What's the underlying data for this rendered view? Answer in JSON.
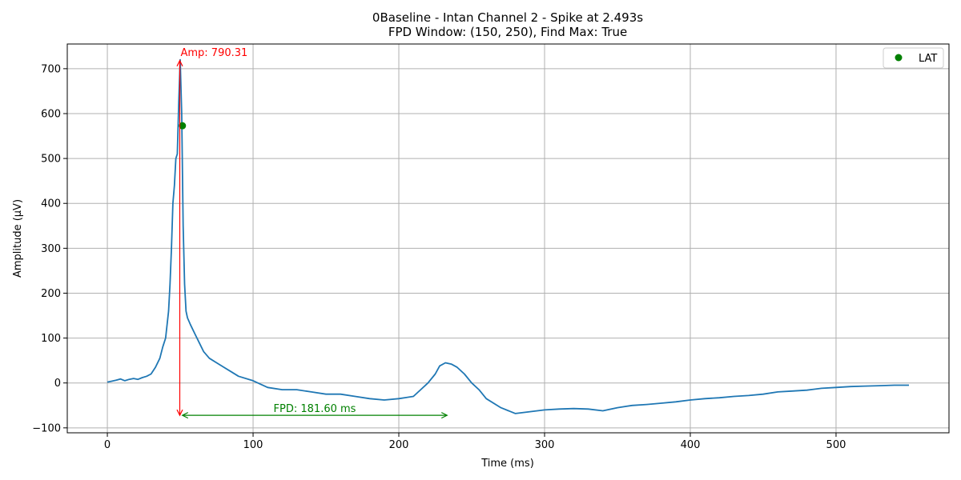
{
  "chart_data": {
    "type": "line",
    "title": "0Baseline - Intan Channel 2 - Spike at 2.493s",
    "subtitle": "FPD Window: (150, 250), Find Max: True",
    "xlabel": "Time (ms)",
    "ylabel": "Amplitude (µV)",
    "xlim": [
      -27.5,
      577.5
    ],
    "ylim": [
      -111,
      755
    ],
    "xticks": [
      0,
      100,
      200,
      300,
      400,
      500
    ],
    "yticks": [
      -100,
      0,
      100,
      200,
      300,
      400,
      500,
      600,
      700
    ],
    "grid": true,
    "legend": {
      "location": "top-right",
      "entries": [
        "LAT"
      ]
    },
    "colors": {
      "signal": "#1f77b4",
      "lat": "#008000",
      "amp": "#ff0000",
      "fpd": "#008000"
    },
    "series": [
      {
        "x": [
          0,
          3,
          6,
          9,
          12,
          15,
          18,
          21,
          24,
          27,
          30,
          33,
          36,
          38,
          40,
          42,
          43,
          44,
          45,
          46,
          47,
          48,
          49,
          50,
          51,
          52,
          53,
          54,
          55,
          57,
          60,
          63,
          66,
          70,
          75,
          80,
          85,
          90,
          100,
          110,
          120,
          130,
          140,
          150,
          160,
          170,
          180,
          190,
          200,
          210,
          215,
          220,
          225,
          228,
          232,
          236,
          240,
          245,
          250,
          255,
          260,
          270,
          280,
          290,
          300,
          310,
          320,
          330,
          340,
          350,
          360,
          370,
          380,
          390,
          400,
          410,
          420,
          430,
          440,
          450,
          460,
          470,
          480,
          490,
          500,
          510,
          520,
          530,
          540,
          550
        ],
        "values": [
          2,
          4,
          6,
          9,
          5,
          8,
          10,
          8,
          12,
          15,
          20,
          35,
          55,
          80,
          100,
          160,
          220,
          300,
          400,
          440,
          500,
          510,
          625,
          720,
          600,
          350,
          220,
          160,
          145,
          130,
          110,
          90,
          70,
          55,
          45,
          35,
          25,
          15,
          5,
          -10,
          -15,
          -15,
          -20,
          -25,
          -25,
          -30,
          -35,
          -38,
          -35,
          -30,
          -15,
          0,
          20,
          38,
          45,
          42,
          35,
          20,
          0,
          -15,
          -35,
          -55,
          -68,
          -64,
          -60,
          -58,
          -57,
          -58,
          -62,
          -55,
          -50,
          -48,
          -45,
          -42,
          -38,
          -35,
          -33,
          -30,
          -28,
          -25,
          -20,
          -18,
          -16,
          -12,
          -10,
          -8,
          -7,
          -6,
          -5,
          -5
        ]
      }
    ],
    "lat_point": {
      "label": "LAT",
      "x": 51.5,
      "y": 573
    },
    "amp_annotation": {
      "label": "Amp: 790.31",
      "x": 49.7,
      "y_top": 718,
      "y_bottom": -72
    },
    "fpd_annotation": {
      "label": "FPD: 181.60 ms",
      "x_start": 51.5,
      "x_end": 233.1,
      "y": -72
    }
  }
}
